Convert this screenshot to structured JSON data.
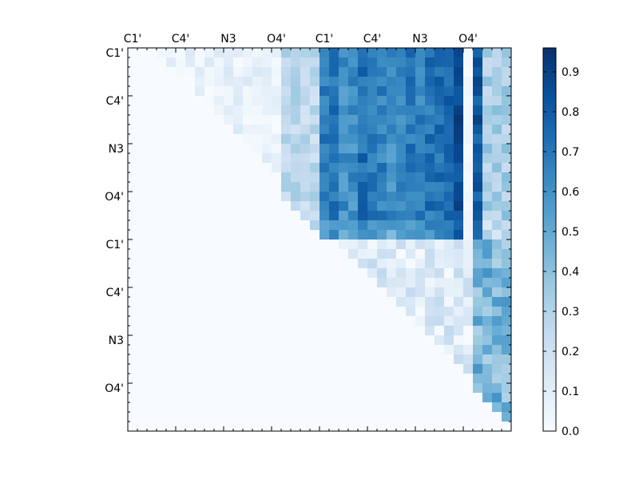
{
  "chart_data": {
    "type": "heatmap",
    "title": "",
    "xlabel": "",
    "ylabel": "",
    "matrix_size": 40,
    "x_tick_labels": [
      "C1'",
      "C4'",
      "N3",
      "O4'",
      "C1'",
      "C4'",
      "N3",
      "O4'"
    ],
    "y_tick_labels": [
      "C1'",
      "C4'",
      "N3",
      "O4'",
      "C1'",
      "C4'",
      "N3",
      "O4'"
    ],
    "colorbar": {
      "min": 0.0,
      "max": 0.96,
      "ticks": [
        "0.0",
        "0.1",
        "0.2",
        "0.3",
        "0.4",
        "0.5",
        "0.6",
        "0.7",
        "0.8",
        "0.9"
      ],
      "colormap": "Blues",
      "color_low": "#f7fbff",
      "color_high": "#08306b"
    },
    "structure": "Upper-triangular matrix; lower triangle near 0.0. Block rows 0-19 x cols 20-39 hold the largest values (about 0.4-0.96), block rows 20-39 x cols 20-39 moderate (about 0.1-0.6), block rows 0-19 x cols 0-19 low (0.0-0.3)."
  }
}
